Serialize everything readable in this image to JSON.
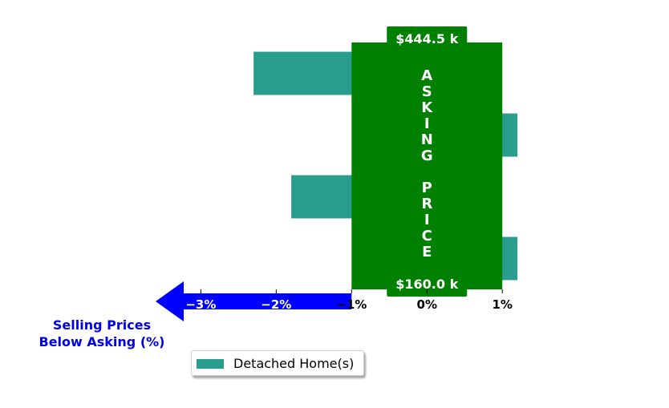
{
  "chart_data": {
    "type": "bar",
    "orientation": "horizontal",
    "series": [
      {
        "name": "Detached Home(s)",
        "values": [
          1.2,
          -1.8,
          1.2,
          -2.3
        ],
        "color": "#2a9d8f"
      }
    ],
    "xlim": [
      -3.6,
      1.2
    ],
    "x_ticks": [
      -3,
      -2,
      -1,
      0,
      1
    ],
    "x_tick_labels": [
      "−3%",
      "−2%",
      "−1%",
      "0%",
      "1%"
    ],
    "xlabel_lines": [
      "Selling Prices",
      "Below Asking (%)"
    ],
    "asking_band": {
      "range": [
        -1,
        1
      ],
      "color": "#008000",
      "label": "ASKING PRICE",
      "top_price": "$444.5 k",
      "bottom_price": "$160.0 k"
    },
    "arrow_color": "#0000ff",
    "legend": {
      "placement": "bottom-center",
      "entries": [
        "Detached Home(s)"
      ]
    },
    "grid": false
  }
}
